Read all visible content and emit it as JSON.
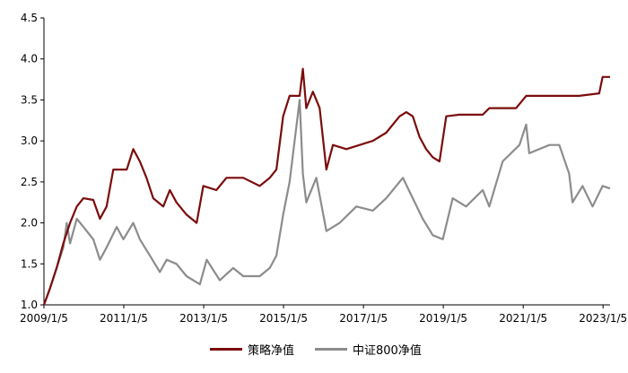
{
  "chart_data": {
    "type": "line",
    "title": "",
    "xlabel": "",
    "ylabel": "",
    "ylim": [
      1.0,
      4.5
    ],
    "xlim": [
      "2009/1/5",
      "2023/3/10"
    ],
    "yticks": [
      "1.0",
      "1.5",
      "2.0",
      "2.5",
      "3.0",
      "3.5",
      "4.0",
      "4.5"
    ],
    "xticks": [
      "2009/1/5",
      "2011/1/5",
      "2013/1/5",
      "2015/1/5",
      "2017/1/5",
      "2019/1/5",
      "2021/1/5",
      "2023/1/5"
    ],
    "grid": false,
    "legend_position": "bottom",
    "series": [
      {
        "name": "策略净值",
        "color": "#7b0c0c",
        "points": [
          [
            "2009/1/5",
            1.0
          ],
          [
            "2009/3/1",
            1.2
          ],
          [
            "2009/5/1",
            1.45
          ],
          [
            "2009/7/1",
            1.75
          ],
          [
            "2009/9/1",
            2.0
          ],
          [
            "2009/11/1",
            2.2
          ],
          [
            "2010/1/1",
            2.3
          ],
          [
            "2010/4/1",
            2.28
          ],
          [
            "2010/6/1",
            2.05
          ],
          [
            "2010/8/1",
            2.2
          ],
          [
            "2010/10/1",
            2.65
          ],
          [
            "2011/2/1",
            2.65
          ],
          [
            "2011/4/1",
            2.9
          ],
          [
            "2011/6/1",
            2.75
          ],
          [
            "2011/8/1",
            2.55
          ],
          [
            "2011/10/1",
            2.3
          ],
          [
            "2012/1/1",
            2.2
          ],
          [
            "2012/3/1",
            2.4
          ],
          [
            "2012/5/1",
            2.25
          ],
          [
            "2012/8/1",
            2.1
          ],
          [
            "2012/11/1",
            2.0
          ],
          [
            "2013/1/1",
            2.45
          ],
          [
            "2013/5/1",
            2.4
          ],
          [
            "2013/8/1",
            2.55
          ],
          [
            "2014/1/1",
            2.55
          ],
          [
            "2014/6/1",
            2.45
          ],
          [
            "2014/9/1",
            2.55
          ],
          [
            "2014/11/1",
            2.65
          ],
          [
            "2015/1/1",
            3.3
          ],
          [
            "2015/3/1",
            3.55
          ],
          [
            "2015/6/1",
            3.55
          ],
          [
            "2015/7/1",
            3.88
          ],
          [
            "2015/8/1",
            3.4
          ],
          [
            "2015/10/1",
            3.6
          ],
          [
            "2015/12/1",
            3.4
          ],
          [
            "2016/2/1",
            2.65
          ],
          [
            "2016/4/1",
            2.95
          ],
          [
            "2016/8/1",
            2.9
          ],
          [
            "2016/12/1",
            2.95
          ],
          [
            "2017/4/1",
            3.0
          ],
          [
            "2017/8/1",
            3.1
          ],
          [
            "2017/12/1",
            3.3
          ],
          [
            "2018/2/1",
            3.35
          ],
          [
            "2018/4/1",
            3.3
          ],
          [
            "2018/6/1",
            3.05
          ],
          [
            "2018/8/1",
            2.9
          ],
          [
            "2018/10/1",
            2.8
          ],
          [
            "2018/12/1",
            2.75
          ],
          [
            "2019/2/1",
            3.3
          ],
          [
            "2019/6/1",
            3.32
          ],
          [
            "2020/1/1",
            3.32
          ],
          [
            "2020/3/1",
            3.4
          ],
          [
            "2020/9/1",
            3.4
          ],
          [
            "2020/11/1",
            3.4
          ],
          [
            "2021/2/1",
            3.55
          ],
          [
            "2021/8/1",
            3.55
          ],
          [
            "2022/6/1",
            3.55
          ],
          [
            "2022/12/1",
            3.58
          ],
          [
            "2023/1/1",
            3.78
          ],
          [
            "2023/3/10",
            3.78
          ]
        ]
      },
      {
        "name": "中证800净值",
        "color": "#8c8c8c",
        "points": [
          [
            "2009/1/5",
            1.0
          ],
          [
            "2009/3/1",
            1.2
          ],
          [
            "2009/5/1",
            1.45
          ],
          [
            "2009/7/1",
            1.7
          ],
          [
            "2009/8/1",
            2.0
          ],
          [
            "2009/9/1",
            1.75
          ],
          [
            "2009/11/1",
            2.05
          ],
          [
            "2010/1/1",
            1.95
          ],
          [
            "2010/4/1",
            1.8
          ],
          [
            "2010/6/1",
            1.55
          ],
          [
            "2010/8/1",
            1.7
          ],
          [
            "2010/11/1",
            1.95
          ],
          [
            "2011/1/1",
            1.8
          ],
          [
            "2011/4/1",
            2.0
          ],
          [
            "2011/6/1",
            1.8
          ],
          [
            "2011/9/1",
            1.6
          ],
          [
            "2011/12/1",
            1.4
          ],
          [
            "2012/2/1",
            1.55
          ],
          [
            "2012/5/1",
            1.5
          ],
          [
            "2012/8/1",
            1.35
          ],
          [
            "2012/12/1",
            1.25
          ],
          [
            "2013/2/1",
            1.55
          ],
          [
            "2013/6/1",
            1.3
          ],
          [
            "2013/10/1",
            1.45
          ],
          [
            "2014/1/1",
            1.35
          ],
          [
            "2014/6/1",
            1.35
          ],
          [
            "2014/9/1",
            1.45
          ],
          [
            "2014/11/1",
            1.6
          ],
          [
            "2015/1/1",
            2.1
          ],
          [
            "2015/3/1",
            2.5
          ],
          [
            "2015/6/1",
            3.5
          ],
          [
            "2015/7/1",
            2.6
          ],
          [
            "2015/8/1",
            2.25
          ],
          [
            "2015/11/1",
            2.55
          ],
          [
            "2016/2/1",
            1.9
          ],
          [
            "2016/6/1",
            2.0
          ],
          [
            "2016/11/1",
            2.2
          ],
          [
            "2017/4/1",
            2.15
          ],
          [
            "2017/8/1",
            2.3
          ],
          [
            "2018/1/1",
            2.55
          ],
          [
            "2018/4/1",
            2.3
          ],
          [
            "2018/7/1",
            2.05
          ],
          [
            "2018/10/1",
            1.85
          ],
          [
            "2019/1/1",
            1.8
          ],
          [
            "2019/4/1",
            2.3
          ],
          [
            "2019/8/1",
            2.2
          ],
          [
            "2020/1/1",
            2.4
          ],
          [
            "2020/3/1",
            2.2
          ],
          [
            "2020/7/1",
            2.75
          ],
          [
            "2020/12/1",
            2.95
          ],
          [
            "2021/2/1",
            3.2
          ],
          [
            "2021/3/1",
            2.85
          ],
          [
            "2021/9/1",
            2.95
          ],
          [
            "2021/12/1",
            2.95
          ],
          [
            "2022/3/1",
            2.6
          ],
          [
            "2022/4/1",
            2.25
          ],
          [
            "2022/7/1",
            2.45
          ],
          [
            "2022/10/1",
            2.2
          ],
          [
            "2023/1/1",
            2.45
          ],
          [
            "2023/3/10",
            2.42
          ]
        ]
      }
    ]
  }
}
